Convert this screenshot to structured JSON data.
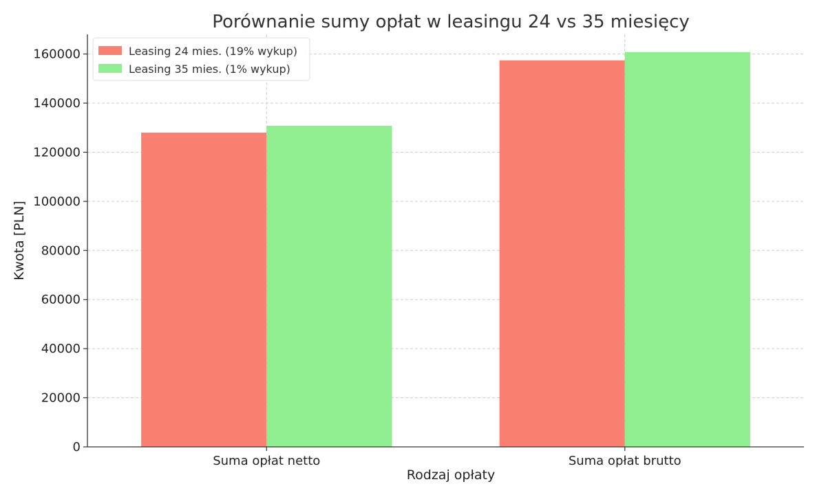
{
  "chart_data": {
    "type": "bar",
    "title": "Porównanie sumy opłat w leasingu 24 vs 35 miesięcy",
    "xlabel": "Rodzaj opłaty",
    "ylabel": "Kwota [PLN]",
    "categories": [
      "Suma opłat netto",
      "Suma opłat brutto"
    ],
    "series": [
      {
        "name": "Leasing 24 mies. (19% wykup)",
        "color": "#fa8072",
        "values": [
          128000,
          157400
        ]
      },
      {
        "name": "Leasing 35 mies. (1% wykup)",
        "color": "#90ee90",
        "values": [
          130800,
          160800
        ]
      }
    ],
    "ylim": [
      0,
      168000
    ],
    "yticks": [
      0,
      20000,
      40000,
      60000,
      80000,
      100000,
      120000,
      140000,
      160000
    ],
    "grid": true,
    "legend_position": "top-left"
  }
}
